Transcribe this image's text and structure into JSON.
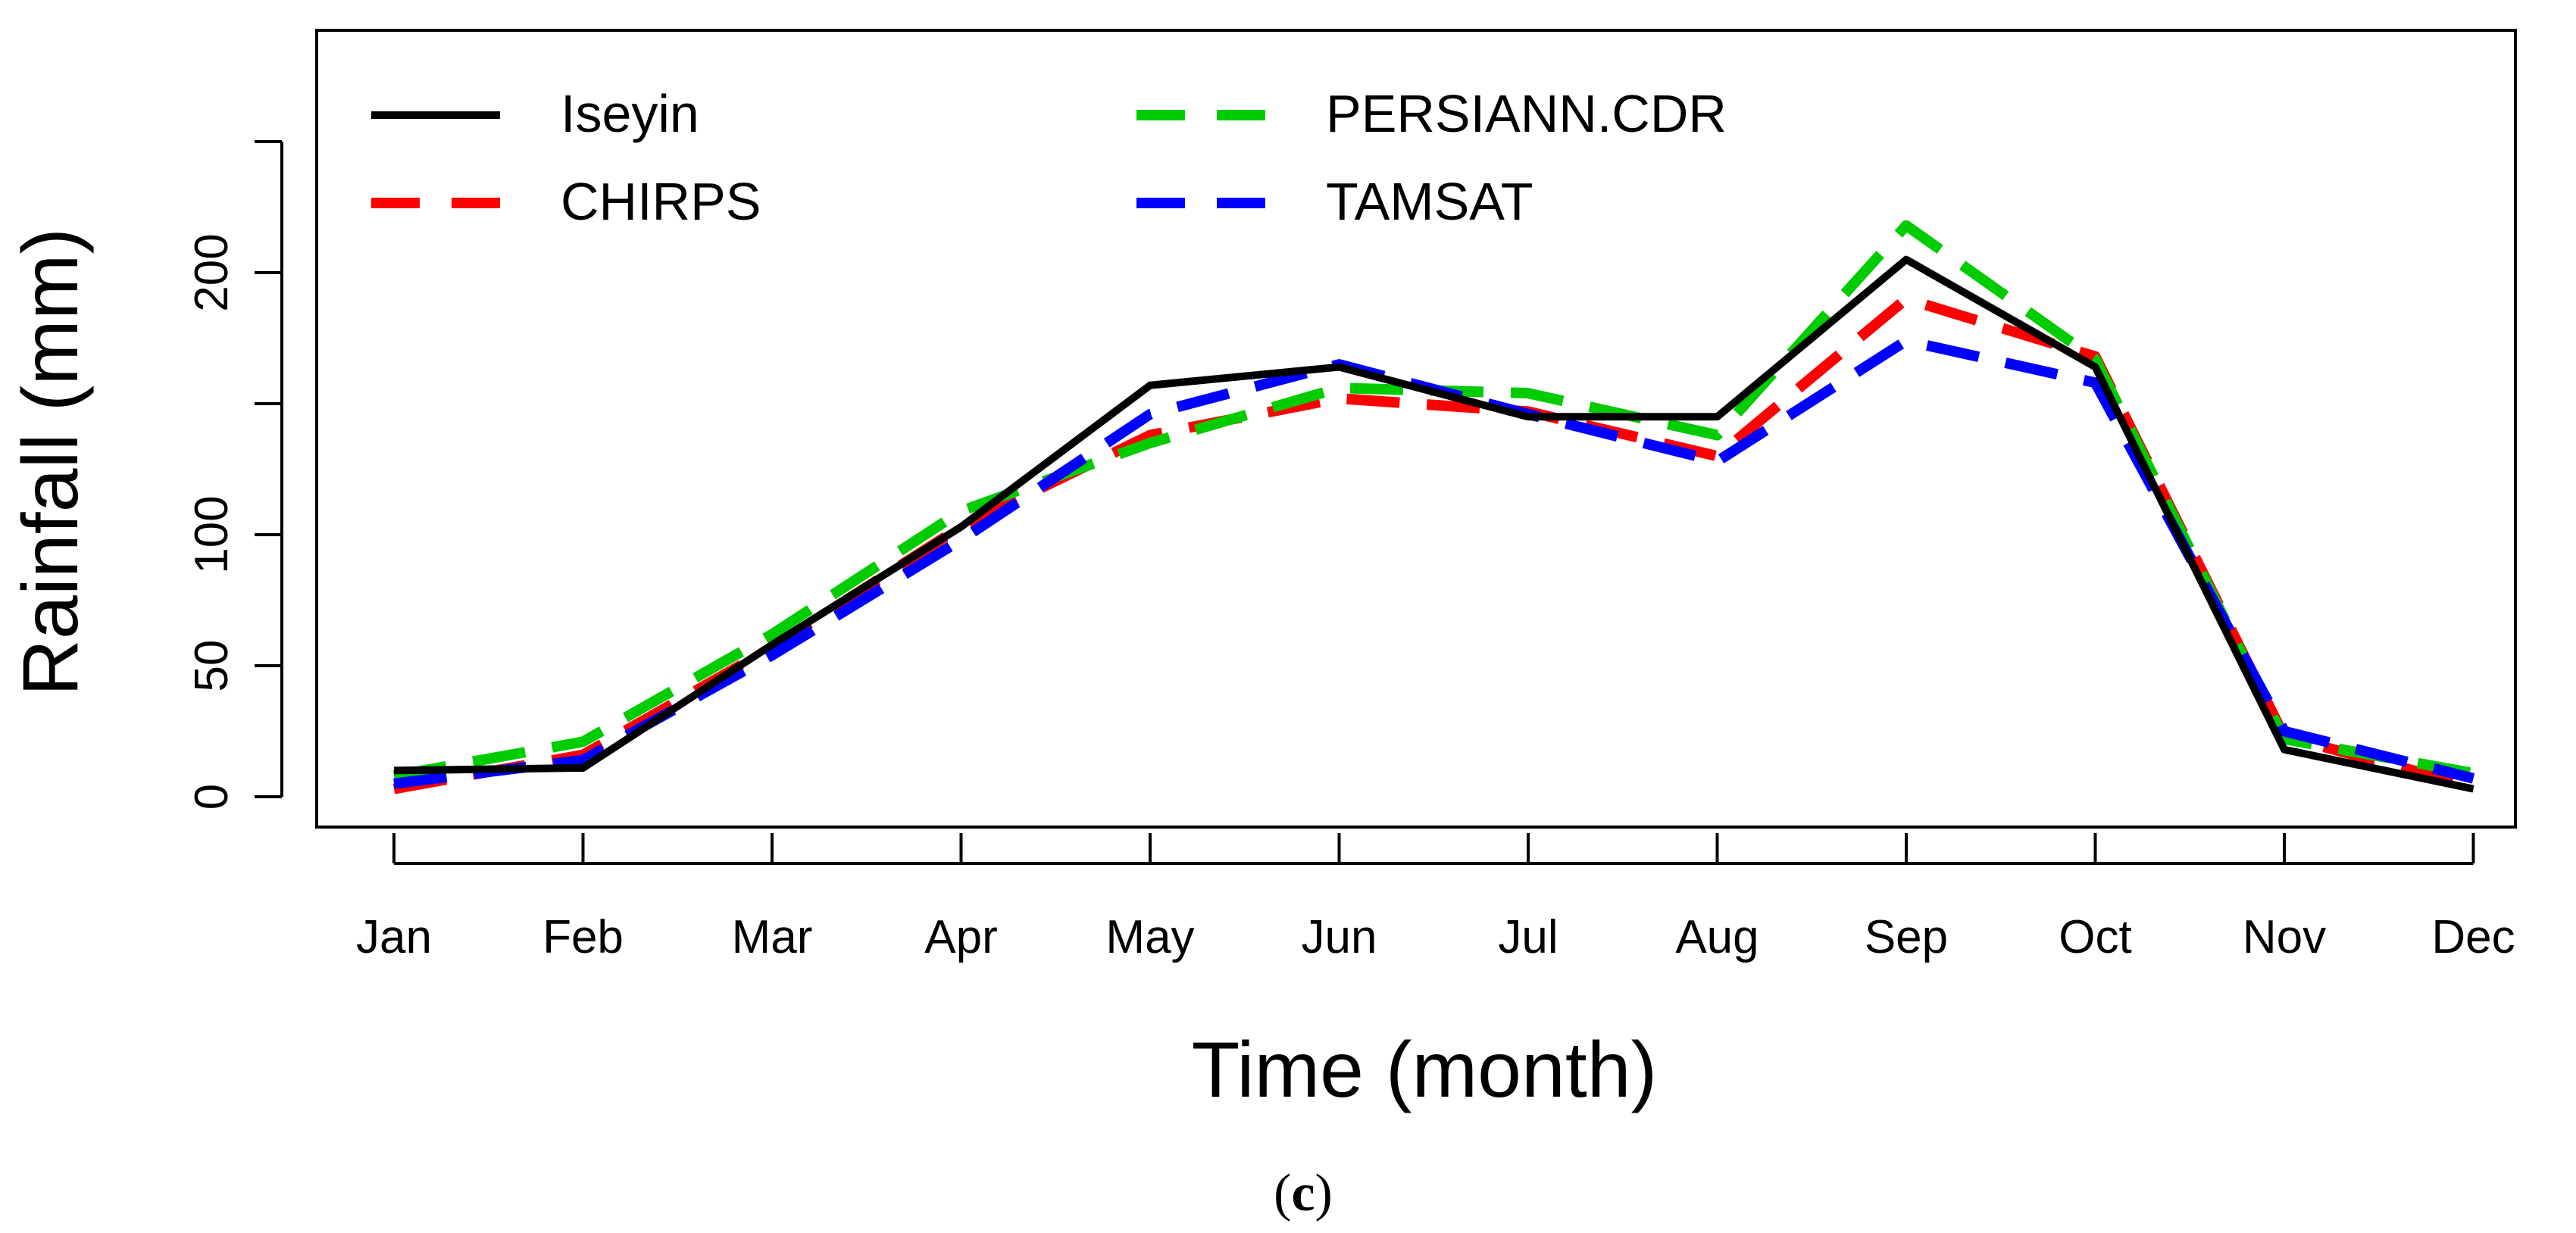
{
  "chart_data": {
    "type": "line",
    "title": "",
    "xlabel": "Time (month)",
    "ylabel": "Rainfall (mm)",
    "caption_letter": "c",
    "categories": [
      "Jan",
      "Feb",
      "Mar",
      "Apr",
      "May",
      "Jun",
      "Jul",
      "Aug",
      "Sep",
      "Oct",
      "Nov",
      "Dec"
    ],
    "ylim": [
      -12,
      290
    ],
    "yticks": [
      0,
      50,
      100,
      200
    ],
    "yticks_extra": [
      150,
      250
    ],
    "grid": false,
    "legend_position": "top-left",
    "series": [
      {
        "name": "Iseyin",
        "color": "#000000",
        "dash": "solid",
        "values": [
          10,
          11,
          58,
          103,
          157,
          164,
          145,
          145,
          205,
          164,
          18,
          3
        ]
      },
      {
        "name": "CHIRPS",
        "color": "#ff0000",
        "dash": "dashed",
        "values": [
          3,
          16,
          57,
          103,
          138,
          152,
          147,
          130,
          190,
          168,
          23,
          4
        ]
      },
      {
        "name": "PERSIANN.CDR",
        "color": "#00cc00",
        "dash": "dashed",
        "values": [
          8,
          21,
          62,
          109,
          135,
          156,
          154,
          138,
          218,
          167,
          22,
          9
        ]
      },
      {
        "name": "TAMSAT",
        "color": "#0000ff",
        "dash": "dashed",
        "values": [
          5,
          14,
          54,
          98,
          146,
          165,
          146,
          128,
          174,
          158,
          25,
          7
        ]
      }
    ]
  }
}
